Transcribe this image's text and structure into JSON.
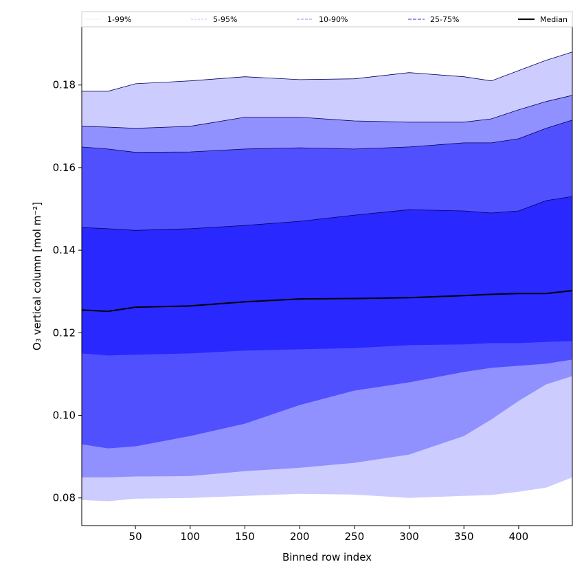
{
  "chart_data": {
    "type": "area",
    "title": "",
    "xlabel": "Binned row index",
    "ylabel": "O₃ vertical column [mol m⁻²]",
    "xlim": [
      1,
      449
    ],
    "ylim": [
      0.0733,
      0.1941
    ],
    "xticks": [
      50,
      100,
      150,
      200,
      250,
      300,
      350,
      400
    ],
    "yticks": [
      0.08,
      0.1,
      0.12,
      0.14,
      0.16,
      0.18
    ],
    "ytick_labels": [
      "0.08",
      "0.10",
      "0.12",
      "0.14",
      "0.16",
      "0.18"
    ],
    "x": [
      1,
      25,
      50,
      100,
      150,
      200,
      250,
      300,
      350,
      375,
      400,
      425,
      449
    ],
    "percentiles": {
      "p1": [
        0.0795,
        0.0792,
        0.0798,
        0.08,
        0.0805,
        0.081,
        0.0808,
        0.08,
        0.0805,
        0.0807,
        0.0815,
        0.0825,
        0.085
      ],
      "p5": [
        0.085,
        0.085,
        0.0852,
        0.0853,
        0.0865,
        0.0873,
        0.0885,
        0.0905,
        0.095,
        0.099,
        0.1035,
        0.1075,
        0.1095
      ],
      "p10": [
        0.093,
        0.092,
        0.0925,
        0.095,
        0.098,
        0.1025,
        0.106,
        0.108,
        0.1105,
        0.1115,
        0.112,
        0.1125,
        0.1135
      ],
      "p25": [
        0.115,
        0.1145,
        0.1147,
        0.115,
        0.1157,
        0.116,
        0.1163,
        0.117,
        0.1172,
        0.1175,
        0.1175,
        0.1178,
        0.118
      ],
      "p50": [
        0.1255,
        0.1252,
        0.1262,
        0.1265,
        0.1275,
        0.1282,
        0.1283,
        0.1285,
        0.129,
        0.1293,
        0.1295,
        0.1295,
        0.1302
      ],
      "p75": [
        0.1455,
        0.1452,
        0.1448,
        0.1452,
        0.146,
        0.147,
        0.1485,
        0.1498,
        0.1495,
        0.149,
        0.1495,
        0.152,
        0.153
      ],
      "p90": [
        0.165,
        0.1645,
        0.1637,
        0.1638,
        0.1645,
        0.1648,
        0.1645,
        0.165,
        0.166,
        0.166,
        0.167,
        0.1695,
        0.1715
      ],
      "p95": [
        0.17,
        0.1698,
        0.1695,
        0.17,
        0.1722,
        0.1722,
        0.1713,
        0.171,
        0.171,
        0.1718,
        0.174,
        0.176,
        0.1775
      ],
      "p99": [
        0.1785,
        0.1785,
        0.1803,
        0.181,
        0.182,
        0.1813,
        0.1815,
        0.183,
        0.182,
        0.181,
        0.1835,
        0.186,
        0.188
      ]
    },
    "bands": [
      {
        "name": "1-99%",
        "lo": "p1",
        "hi": "p99",
        "color": "#ccccff"
      },
      {
        "name": "5-95%",
        "lo": "p5",
        "hi": "p95",
        "color": "#9090ff"
      },
      {
        "name": "10-90%",
        "lo": "p10",
        "hi": "p90",
        "color": "#5050ff"
      },
      {
        "name": "25-75%",
        "lo": "p25",
        "hi": "p75",
        "color": "#2828ff"
      }
    ],
    "median": {
      "name": "Median",
      "color": "#000000"
    },
    "legend": {
      "placement": "top",
      "entries": [
        "1-99%",
        "5-95%",
        "10-90%",
        "25-75%",
        "Median"
      ],
      "colors": [
        "#d8d8f0",
        "#b0b0e8",
        "#9090e0",
        "#7070f0",
        "#000000"
      ]
    }
  }
}
